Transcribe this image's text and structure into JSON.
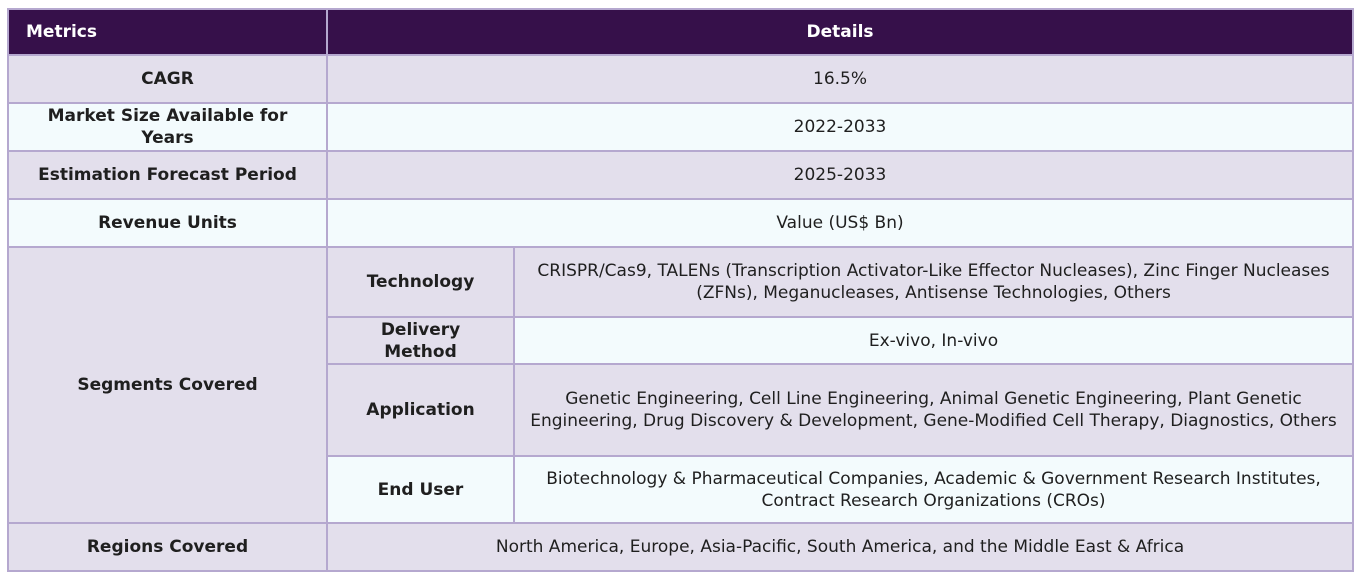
{
  "header": {
    "metrics": "Metrics",
    "details": "Details"
  },
  "rows": {
    "cagr": {
      "label": "CAGR",
      "value": "16.5%"
    },
    "market_size": {
      "label": "Market Size Available for Years",
      "value": "2022-2033"
    },
    "forecast": {
      "label": "Estimation Forecast Period",
      "value": "2025-2033"
    },
    "revenue_units": {
      "label": "Revenue Units",
      "value": "Value (US$ Bn)"
    },
    "segments": {
      "label": "Segments Covered",
      "technology": {
        "label": "Technology",
        "value": "CRISPR/Cas9, TALENs (Transcription Activator-Like Effector Nucleases), Zinc Finger Nucleases (ZFNs), Meganucleases, Antisense Technologies, Others"
      },
      "delivery": {
        "label": "Delivery Method",
        "value": "Ex-vivo, In-vivo"
      },
      "application": {
        "label": "Application",
        "value": "Genetic Engineering, Cell Line Engineering, Animal Genetic Engineering, Plant Genetic Engineering, Drug Discovery & Development, Gene-Modified Cell Therapy, Diagnostics, Others"
      },
      "end_user": {
        "label": "End User",
        "value": "Biotechnology & Pharmaceutical Companies, Academic & Government Research Institutes, Contract Research Organizations (CROs)"
      }
    },
    "regions": {
      "label": "Regions Covered",
      "value": "North America, Europe, Asia-Pacific, South America, and the Middle East & Africa"
    }
  },
  "colors": {
    "header_bg": "#36104a",
    "row_alt_bg": "#e3dfec",
    "row_plain_bg": "#f3fbfd",
    "border": "#b5a8cf"
  }
}
